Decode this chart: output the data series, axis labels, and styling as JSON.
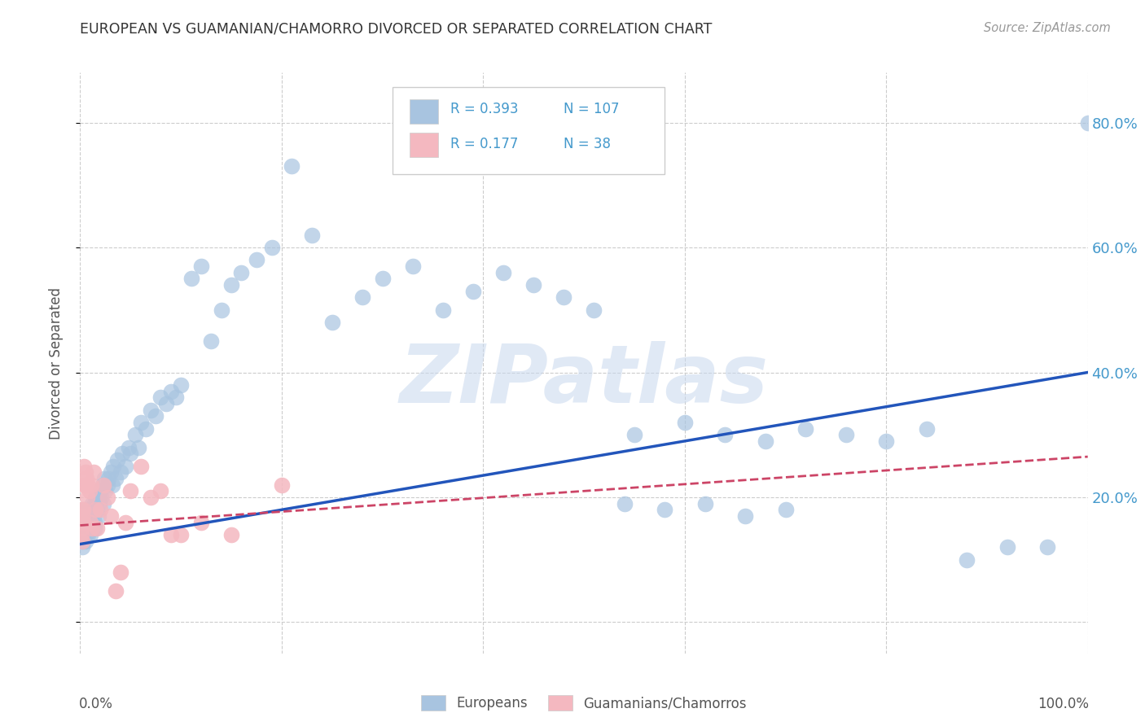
{
  "title": "EUROPEAN VS GUAMANIAN/CHAMORRO DIVORCED OR SEPARATED CORRELATION CHART",
  "source": "Source: ZipAtlas.com",
  "ylabel": "Divorced or Separated",
  "watermark": "ZIPatlas",
  "legend_blue_r": "0.393",
  "legend_blue_n": "107",
  "legend_pink_r": "0.177",
  "legend_pink_n": "38",
  "blue_color": "#a8c4e0",
  "blue_line_color": "#2255bb",
  "pink_color": "#f4b8c0",
  "pink_line_color": "#cc4466",
  "background_color": "#ffffff",
  "grid_color": "#cccccc",
  "yticks": [
    0.0,
    0.2,
    0.4,
    0.6,
    0.8
  ],
  "xlim": [
    0.0,
    1.0
  ],
  "ylim": [
    -0.05,
    0.88
  ],
  "blue_x": [
    0.001,
    0.001,
    0.001,
    0.002,
    0.002,
    0.002,
    0.002,
    0.003,
    0.003,
    0.003,
    0.004,
    0.004,
    0.004,
    0.005,
    0.005,
    0.005,
    0.006,
    0.006,
    0.007,
    0.007,
    0.008,
    0.008,
    0.009,
    0.009,
    0.01,
    0.01,
    0.011,
    0.011,
    0.012,
    0.012,
    0.013,
    0.013,
    0.014,
    0.014,
    0.015,
    0.015,
    0.016,
    0.017,
    0.018,
    0.018,
    0.019,
    0.02,
    0.021,
    0.022,
    0.023,
    0.024,
    0.025,
    0.027,
    0.028,
    0.03,
    0.032,
    0.033,
    0.035,
    0.037,
    0.04,
    0.042,
    0.045,
    0.048,
    0.05,
    0.055,
    0.058,
    0.06,
    0.065,
    0.07,
    0.075,
    0.08,
    0.085,
    0.09,
    0.095,
    0.1,
    0.11,
    0.12,
    0.13,
    0.14,
    0.15,
    0.16,
    0.175,
    0.19,
    0.21,
    0.23,
    0.25,
    0.28,
    0.3,
    0.33,
    0.36,
    0.39,
    0.42,
    0.45,
    0.48,
    0.51,
    0.55,
    0.6,
    0.64,
    0.68,
    0.72,
    0.76,
    0.8,
    0.84,
    0.88,
    0.92,
    0.96,
    1.0,
    0.54,
    0.58,
    0.62,
    0.66,
    0.7
  ],
  "blue_y": [
    0.14,
    0.16,
    0.13,
    0.15,
    0.17,
    0.12,
    0.16,
    0.15,
    0.13,
    0.17,
    0.16,
    0.14,
    0.18,
    0.15,
    0.13,
    0.17,
    0.16,
    0.14,
    0.16,
    0.15,
    0.17,
    0.14,
    0.16,
    0.15,
    0.18,
    0.14,
    0.17,
    0.15,
    0.19,
    0.16,
    0.17,
    0.15,
    0.19,
    0.16,
    0.2,
    0.15,
    0.19,
    0.18,
    0.2,
    0.17,
    0.19,
    0.21,
    0.2,
    0.22,
    0.19,
    0.23,
    0.21,
    0.22,
    0.23,
    0.24,
    0.22,
    0.25,
    0.23,
    0.26,
    0.24,
    0.27,
    0.25,
    0.28,
    0.27,
    0.3,
    0.28,
    0.32,
    0.31,
    0.34,
    0.33,
    0.36,
    0.35,
    0.37,
    0.36,
    0.38,
    0.55,
    0.57,
    0.45,
    0.5,
    0.54,
    0.56,
    0.58,
    0.6,
    0.73,
    0.62,
    0.48,
    0.52,
    0.55,
    0.57,
    0.5,
    0.53,
    0.56,
    0.54,
    0.52,
    0.5,
    0.3,
    0.32,
    0.3,
    0.29,
    0.31,
    0.3,
    0.29,
    0.31,
    0.1,
    0.12,
    0.12,
    0.8,
    0.19,
    0.18,
    0.19,
    0.17,
    0.18
  ],
  "pink_x": [
    0.001,
    0.001,
    0.001,
    0.002,
    0.002,
    0.002,
    0.003,
    0.003,
    0.004,
    0.004,
    0.005,
    0.005,
    0.006,
    0.007,
    0.008,
    0.009,
    0.01,
    0.011,
    0.012,
    0.013,
    0.015,
    0.017,
    0.02,
    0.023,
    0.027,
    0.03,
    0.035,
    0.04,
    0.045,
    0.05,
    0.06,
    0.07,
    0.08,
    0.09,
    0.1,
    0.12,
    0.15,
    0.2
  ],
  "pink_y": [
    0.16,
    0.14,
    0.18,
    0.15,
    0.17,
    0.13,
    0.16,
    0.18,
    0.22,
    0.25,
    0.22,
    0.24,
    0.23,
    0.2,
    0.22,
    0.21,
    0.16,
    0.22,
    0.15,
    0.24,
    0.18,
    0.15,
    0.18,
    0.22,
    0.2,
    0.17,
    0.05,
    0.08,
    0.16,
    0.21,
    0.25,
    0.2,
    0.21,
    0.14,
    0.14,
    0.16,
    0.14,
    0.22
  ],
  "blue_trend_x": [
    0.0,
    1.0
  ],
  "blue_trend_y": [
    0.125,
    0.4
  ],
  "pink_trend_x": [
    0.0,
    1.0
  ],
  "pink_trend_y": [
    0.155,
    0.265
  ]
}
